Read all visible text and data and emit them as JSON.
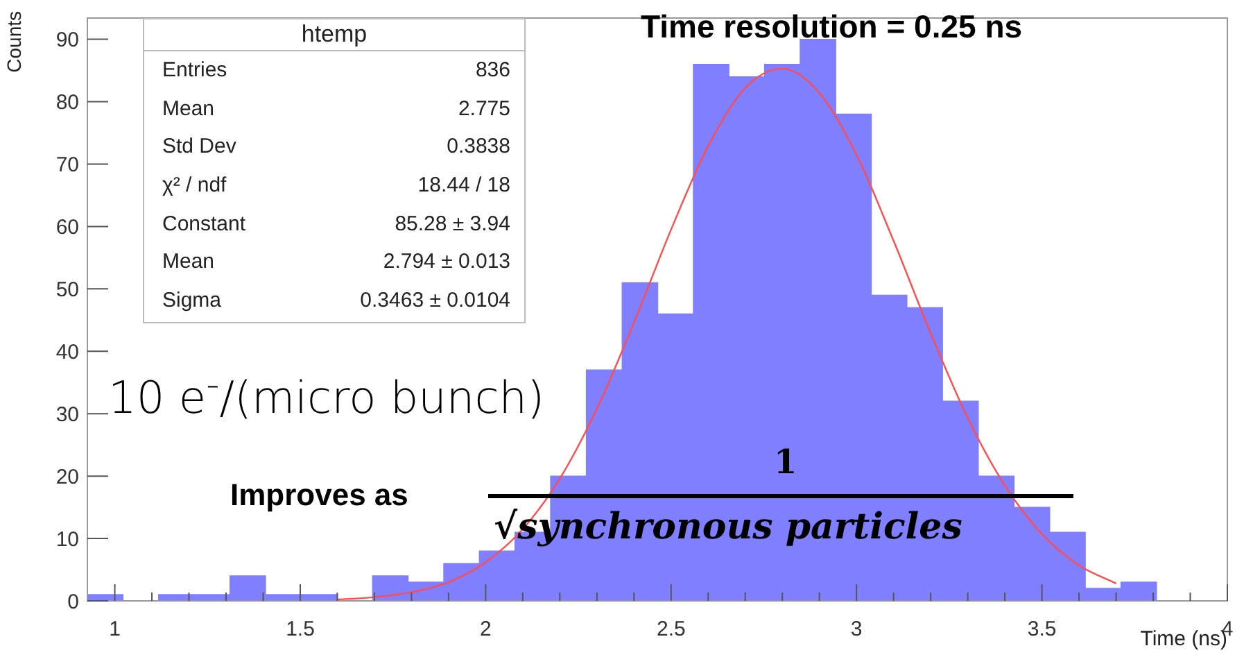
{
  "chart_data": {
    "type": "histogram",
    "title": "Time resolution = 0.25 ns",
    "xlabel": "Time (ns)",
    "ylabel": "Counts",
    "xlim": [
      0.926,
      4
    ],
    "ylim": [
      0,
      93.4
    ],
    "xticks": [
      1,
      {
        "value": 1.1,
        "label": null
      },
      {
        "value": 1.2,
        "label": null
      },
      {
        "value": 1.3,
        "label": null
      },
      {
        "value": 1.4,
        "label": null
      },
      1.5,
      {
        "value": 1.6,
        "label": null
      },
      {
        "value": 1.7,
        "label": null
      },
      {
        "value": 1.8,
        "label": null
      },
      {
        "value": 1.9,
        "label": null
      },
      2,
      {
        "value": 2.1,
        "label": null
      },
      {
        "value": 2.2,
        "label": null
      },
      {
        "value": 2.3,
        "label": null
      },
      {
        "value": 2.4,
        "label": null
      },
      2.5,
      {
        "value": 2.6,
        "label": null
      },
      {
        "value": 2.7,
        "label": null
      },
      {
        "value": 2.8,
        "label": null
      },
      {
        "value": 2.9,
        "label": null
      },
      3,
      {
        "value": 3.1,
        "label": null
      },
      {
        "value": 3.2,
        "label": null
      },
      {
        "value": 3.3,
        "label": null
      },
      {
        "value": 3.4,
        "label": null
      },
      3.5,
      {
        "value": 3.6,
        "label": null
      },
      {
        "value": 3.7,
        "label": null
      },
      {
        "value": 3.8,
        "label": null
      },
      {
        "value": 3.9,
        "label": null
      },
      4
    ],
    "yticks": [
      0,
      10,
      20,
      30,
      40,
      50,
      60,
      70,
      80,
      90
    ],
    "grid": false,
    "series": [
      {
        "color": "#7f7fff",
        "bins": [
          0.926,
          1.022,
          1.118,
          1.214,
          1.31,
          1.407,
          1.503,
          1.599,
          1.695,
          1.791,
          1.887,
          1.983,
          2.079,
          2.175,
          2.271,
          2.368,
          2.464,
          2.56,
          2.656,
          2.752,
          2.848,
          2.944,
          3.04,
          3.136,
          3.232,
          3.329,
          3.425,
          3.521,
          3.617,
          3.713,
          3.809
        ],
        "values": [
          1,
          0,
          1,
          1,
          4,
          1,
          1,
          0,
          4,
          3,
          6,
          8,
          11,
          20,
          37,
          51,
          46,
          86,
          84,
          86,
          90,
          78,
          49,
          47,
          32,
          20,
          15,
          11,
          2,
          3
        ]
      },
      {
        "type": "line",
        "color": "#ff4d4d",
        "x": [
          1.6,
          1.7,
          1.8,
          1.9,
          2.0,
          2.1,
          2.2,
          2.3,
          2.4,
          2.5,
          2.6,
          2.7,
          2.8,
          2.9,
          3.0,
          3.1,
          3.2,
          3.3,
          3.4,
          3.5,
          3.6,
          3.7
        ],
        "values": [
          0.2,
          0.6,
          1.4,
          3.0,
          6.2,
          11.5,
          19.6,
          30.8,
          44.6,
          59.5,
          72.9,
          82.2,
          85.3,
          81.4,
          71.5,
          57.7,
          42.9,
          29.3,
          18.5,
          10.7,
          5.7,
          2.8
        ]
      }
    ],
    "annotations": [
      "htemp",
      "Entries",
      "836",
      "Mean",
      "2.775",
      "Std Dev",
      "0.3838",
      "χ² / ndf",
      "18.44 / 18",
      "Constant",
      "85.28 ± 3.94",
      "Mean",
      "2.794 ± 0.013",
      "Sigma",
      "0.3463 ± 0.0104",
      "10 e$^{-}$/(micro bunch)",
      "Improves as",
      "1",
      "√synchronous particles"
    ]
  }
}
